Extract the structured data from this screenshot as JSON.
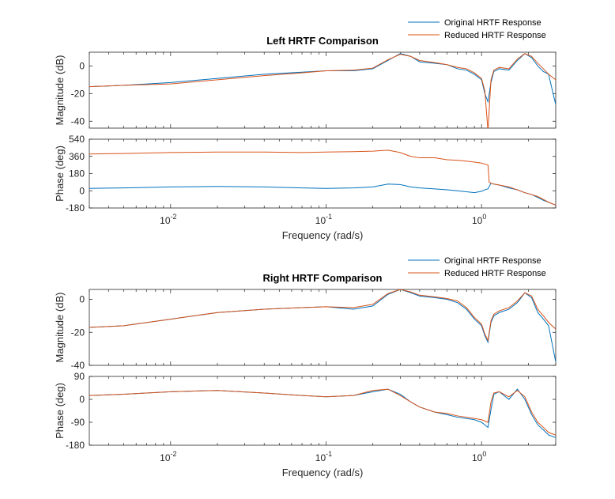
{
  "chart_data": [
    {
      "type": "line",
      "title": "Left HRTF Comparison",
      "xlabel": "",
      "ylabel": "Magnitude (dB)",
      "xscale": "log",
      "xlim": [
        0.003,
        3.0
      ],
      "ylim": [
        -45,
        10
      ],
      "yticks": [
        0,
        -20,
        -40
      ],
      "ytick_labels": [
        "0",
        "-20",
        "-40"
      ],
      "legend": {
        "placement": "top-right"
      },
      "series": [
        {
          "name": "Original HRTF Response",
          "color": "#0072BD",
          "x": [
            0.003,
            0.005,
            0.01,
            0.02,
            0.04,
            0.07,
            0.1,
            0.15,
            0.2,
            0.25,
            0.3,
            0.35,
            0.4,
            0.5,
            0.6,
            0.7,
            0.8,
            0.9,
            1.0,
            1.05,
            1.1,
            1.15,
            1.2,
            1.3,
            1.5,
            1.7,
            1.9,
            2.1,
            2.3,
            2.5,
            2.7,
            3.0
          ],
          "y": [
            -15,
            -14,
            -12,
            -9,
            -6,
            -4.5,
            -3.5,
            -3.5,
            -2,
            4,
            9,
            7,
            3,
            2,
            1,
            -2,
            -3,
            -6,
            -10,
            -20,
            -26,
            -12,
            -4,
            -2,
            -3,
            4,
            9,
            6,
            0,
            -4,
            -6,
            -28
          ]
        },
        {
          "name": "Reduced HRTF Response",
          "color": "#D95319",
          "x": [
            0.003,
            0.005,
            0.01,
            0.02,
            0.04,
            0.07,
            0.1,
            0.15,
            0.2,
            0.25,
            0.3,
            0.35,
            0.4,
            0.5,
            0.6,
            0.7,
            0.8,
            0.9,
            1.0,
            1.05,
            1.1,
            1.15,
            1.2,
            1.3,
            1.5,
            1.7,
            1.9,
            2.1,
            2.3,
            2.5,
            2.7,
            3.0
          ],
          "y": [
            -15,
            -14,
            -13,
            -10,
            -7,
            -5,
            -3.5,
            -3,
            -1.5,
            4.5,
            8.5,
            7,
            4,
            2.5,
            1,
            -1,
            -2,
            -5,
            -9,
            -18,
            -47,
            -10,
            -3,
            -1,
            -2,
            5,
            9,
            7,
            2,
            -2,
            -6,
            -10
          ]
        }
      ]
    },
    {
      "type": "line",
      "title": "",
      "xlabel": "Frequency  (rad/s)",
      "ylabel": "Phase (deg)",
      "xscale": "log",
      "xlim": [
        0.003,
        3.0
      ],
      "ylim": [
        -180,
        540
      ],
      "yticks": [
        540,
        360,
        180,
        0,
        -180
      ],
      "ytick_labels": [
        "540",
        "360",
        "180",
        "0",
        "-180"
      ],
      "xticks": [
        0.01,
        0.1,
        1
      ],
      "xtick_labels": [
        {
          "base": "10",
          "exp": "-2"
        },
        {
          "base": "10",
          "exp": "-1"
        },
        {
          "base": "10",
          "exp": "0"
        }
      ],
      "series": [
        {
          "name": "Original HRTF Response",
          "color": "#0072BD",
          "x": [
            0.003,
            0.005,
            0.01,
            0.02,
            0.04,
            0.07,
            0.1,
            0.15,
            0.2,
            0.25,
            0.3,
            0.35,
            0.4,
            0.5,
            0.6,
            0.7,
            0.8,
            0.9,
            1.0,
            1.05,
            1.1,
            1.15,
            1.2,
            1.3,
            1.5,
            1.7,
            1.9,
            2.1,
            2.3,
            2.5,
            2.7,
            3.0
          ],
          "y": [
            25,
            30,
            40,
            45,
            40,
            30,
            25,
            30,
            40,
            70,
            65,
            40,
            30,
            20,
            10,
            0,
            -10,
            -20,
            -5,
            10,
            20,
            80,
            70,
            60,
            30,
            10,
            -20,
            -40,
            -70,
            -100,
            -120,
            -150
          ]
        },
        {
          "name": "Reduced HRTF Response",
          "color": "#D95319",
          "x": [
            0.003,
            0.005,
            0.01,
            0.02,
            0.04,
            0.07,
            0.1,
            0.15,
            0.2,
            0.25,
            0.3,
            0.35,
            0.4,
            0.5,
            0.6,
            0.7,
            0.8,
            0.9,
            1.0,
            1.05,
            1.1,
            1.12,
            1.15,
            1.2,
            1.3,
            1.5,
            1.7,
            1.9,
            2.1,
            2.3,
            2.5,
            2.7,
            3.0
          ],
          "y": [
            385,
            390,
            400,
            405,
            405,
            400,
            405,
            410,
            415,
            425,
            400,
            360,
            345,
            345,
            325,
            320,
            310,
            300,
            290,
            280,
            270,
            90,
            80,
            70,
            60,
            40,
            10,
            -20,
            -40,
            -60,
            -90,
            -120,
            -150
          ]
        }
      ]
    },
    {
      "type": "line",
      "title": "Right HRTF Comparison",
      "xlabel": "",
      "ylabel": "Magnitude (dB)",
      "xscale": "log",
      "xlim": [
        0.003,
        3.0
      ],
      "ylim": [
        -40,
        6
      ],
      "yticks": [
        0,
        -20,
        -40
      ],
      "ytick_labels": [
        "0",
        "-20",
        "-40"
      ],
      "legend": {
        "placement": "top-right"
      },
      "series": [
        {
          "name": "Original HRTF Response",
          "color": "#0072BD",
          "x": [
            0.003,
            0.005,
            0.01,
            0.02,
            0.04,
            0.07,
            0.1,
            0.15,
            0.2,
            0.25,
            0.3,
            0.35,
            0.4,
            0.5,
            0.6,
            0.7,
            0.8,
            0.9,
            1.0,
            1.05,
            1.1,
            1.15,
            1.2,
            1.3,
            1.5,
            1.7,
            1.9,
            2.1,
            2.3,
            2.5,
            2.7,
            3.0
          ],
          "y": [
            -17,
            -16,
            -12,
            -8,
            -6,
            -5,
            -4.5,
            -6,
            -4,
            3,
            6,
            4,
            2,
            1,
            0,
            -2,
            -6,
            -12,
            -16,
            -22,
            -26,
            -14,
            -10,
            -8,
            -6,
            -2,
            4,
            1,
            -8,
            -12,
            -16,
            -38
          ]
        },
        {
          "name": "Reduced HRTF Response",
          "color": "#D95319",
          "x": [
            0.003,
            0.005,
            0.01,
            0.02,
            0.04,
            0.07,
            0.1,
            0.15,
            0.2,
            0.25,
            0.3,
            0.35,
            0.4,
            0.5,
            0.6,
            0.7,
            0.8,
            0.9,
            1.0,
            1.05,
            1.1,
            1.15,
            1.2,
            1.3,
            1.5,
            1.7,
            1.9,
            2.1,
            2.3,
            2.5,
            2.7,
            3.0
          ],
          "y": [
            -17,
            -16,
            -12,
            -8,
            -6,
            -5,
            -4.5,
            -5,
            -3,
            3.5,
            6,
            4.5,
            2.5,
            1.5,
            0.5,
            -1,
            -5,
            -11,
            -15,
            -21,
            -25,
            -13,
            -9,
            -7,
            -5,
            -1,
            4,
            2,
            -6,
            -10,
            -14,
            -18
          ]
        }
      ]
    },
    {
      "type": "line",
      "title": "",
      "xlabel": "Frequency  (rad/s)",
      "ylabel": "Phase (deg)",
      "xscale": "log",
      "xlim": [
        0.003,
        3.0
      ],
      "ylim": [
        -180,
        90
      ],
      "yticks": [
        90,
        0,
        -90,
        -180
      ],
      "ytick_labels": [
        "90",
        "0",
        "-90",
        "-180"
      ],
      "xticks": [
        0.01,
        0.1,
        1
      ],
      "xtick_labels": [
        {
          "base": "10",
          "exp": "-2"
        },
        {
          "base": "10",
          "exp": "-1"
        },
        {
          "base": "10",
          "exp": "0"
        }
      ],
      "series": [
        {
          "name": "Original HRTF Response",
          "color": "#0072BD",
          "x": [
            0.003,
            0.005,
            0.01,
            0.02,
            0.04,
            0.07,
            0.1,
            0.15,
            0.2,
            0.25,
            0.3,
            0.35,
            0.4,
            0.5,
            0.6,
            0.7,
            0.8,
            0.9,
            1.0,
            1.05,
            1.1,
            1.15,
            1.2,
            1.3,
            1.5,
            1.7,
            1.9,
            2.1,
            2.3,
            2.5,
            2.7,
            3.0
          ],
          "y": [
            15,
            20,
            30,
            35,
            25,
            15,
            10,
            15,
            30,
            40,
            20,
            -10,
            -30,
            -50,
            -60,
            -70,
            -75,
            -80,
            -90,
            -100,
            -110,
            -40,
            20,
            30,
            0,
            40,
            0,
            -60,
            -100,
            -120,
            -140,
            -150
          ]
        },
        {
          "name": "Reduced HRTF Response",
          "color": "#D95319",
          "x": [
            0.003,
            0.005,
            0.01,
            0.02,
            0.04,
            0.07,
            0.1,
            0.15,
            0.2,
            0.25,
            0.3,
            0.35,
            0.4,
            0.5,
            0.6,
            0.7,
            0.8,
            0.9,
            1.0,
            1.05,
            1.1,
            1.15,
            1.2,
            1.3,
            1.5,
            1.7,
            1.9,
            2.1,
            2.3,
            2.5,
            2.7,
            3.0
          ],
          "y": [
            15,
            20,
            30,
            35,
            25,
            15,
            10,
            15,
            35,
            40,
            15,
            -10,
            -30,
            -50,
            -55,
            -65,
            -70,
            -75,
            -80,
            -85,
            -90,
            -10,
            25,
            30,
            10,
            35,
            10,
            -50,
            -90,
            -110,
            -130,
            -140
          ]
        }
      ]
    }
  ]
}
